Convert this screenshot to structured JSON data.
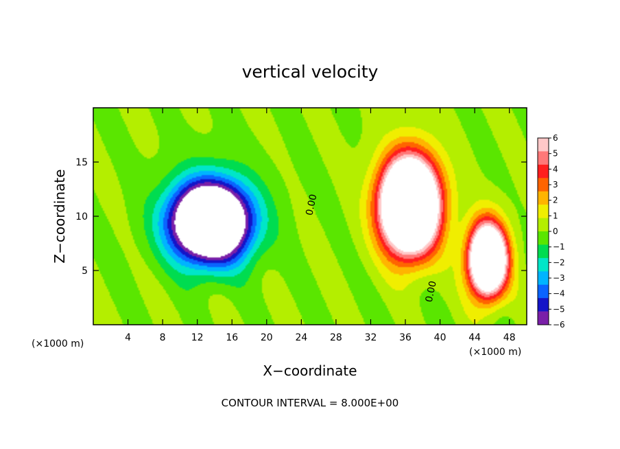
{
  "chart_data": {
    "type": "heatmap",
    "title": "vertical velocity",
    "xlabel": "X−coordinate",
    "ylabel": "Z−coordinate",
    "x_unit": "(×1000 m)",
    "z_unit": "(×1000 m)",
    "xlim": [
      0,
      50
    ],
    "ylim": [
      0,
      20
    ],
    "x_ticks": [
      4,
      8,
      12,
      16,
      20,
      24,
      28,
      32,
      36,
      40,
      44,
      48
    ],
    "y_ticks": [
      5,
      10,
      15
    ],
    "x_tick_labels": [
      "4",
      "8",
      "12",
      "16",
      "20",
      "24",
      "28",
      "32",
      "36",
      "40",
      "44",
      "48"
    ],
    "y_tick_labels": [
      "5",
      "10",
      "15"
    ],
    "colorbar": {
      "range": [
        -6,
        6
      ],
      "tick_values": [
        6,
        5,
        4,
        3,
        2,
        1,
        0,
        -1,
        -2,
        -3,
        -4,
        -5,
        -6
      ],
      "tick_labels": [
        "6",
        "5",
        "4",
        "3",
        "2",
        "1",
        "0",
        "−1",
        "−2",
        "−3",
        "−4",
        "−5",
        "−6"
      ],
      "colors": [
        "#7a1fa8",
        "#1414c8",
        "#0a64ff",
        "#00b4ff",
        "#00e6c8",
        "#00dc50",
        "#5ae600",
        "#b4ee00",
        "#f0ee00",
        "#ffb400",
        "#ff6400",
        "#ff1e1e",
        "#ff7878",
        "#ffc8c8"
      ]
    },
    "contour_labels": [
      {
        "text": "0.00",
        "x": 25.5,
        "z": 11.0
      },
      {
        "text": "0.00",
        "x": 39.3,
        "z": 3.0
      }
    ],
    "footnote": "CONTOUR INTERVAL =  8.000E+00",
    "features": [
      {
        "kind": "downdraft",
        "x": 13.5,
        "z": 9.5,
        "sx": 4.5,
        "sz": 3.6,
        "amp": -14
      },
      {
        "kind": "updraft",
        "x": 36.5,
        "z": 11.0,
        "sx": 3.2,
        "sz": 4.2,
        "amp": 18
      },
      {
        "kind": "updraft",
        "x": 45.5,
        "z": 6.0,
        "sx": 2.1,
        "sz": 3.2,
        "amp": 15
      }
    ]
  }
}
